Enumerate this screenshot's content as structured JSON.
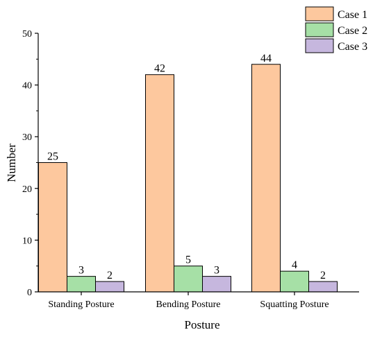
{
  "chart_data": {
    "type": "bar",
    "title": "",
    "xlabel": "Posture",
    "ylabel": "Number",
    "categories": [
      "Standing Posture",
      "Bending Posture",
      "Squatting Posture"
    ],
    "series": [
      {
        "name": "Case 1",
        "values": [
          25,
          42,
          44
        ],
        "color": "#FDC89E"
      },
      {
        "name": "Case 2",
        "values": [
          3,
          5,
          4
        ],
        "color": "#A6E0A6"
      },
      {
        "name": "Case 3",
        "values": [
          2,
          3,
          2
        ],
        "color": "#C6B7DE"
      }
    ],
    "ylim": [
      0,
      50
    ],
    "yticks": [
      "0",
      "10",
      "20",
      "30",
      "40",
      "50"
    ],
    "legend_position": "top-right",
    "grid": false,
    "data_labels": true
  }
}
